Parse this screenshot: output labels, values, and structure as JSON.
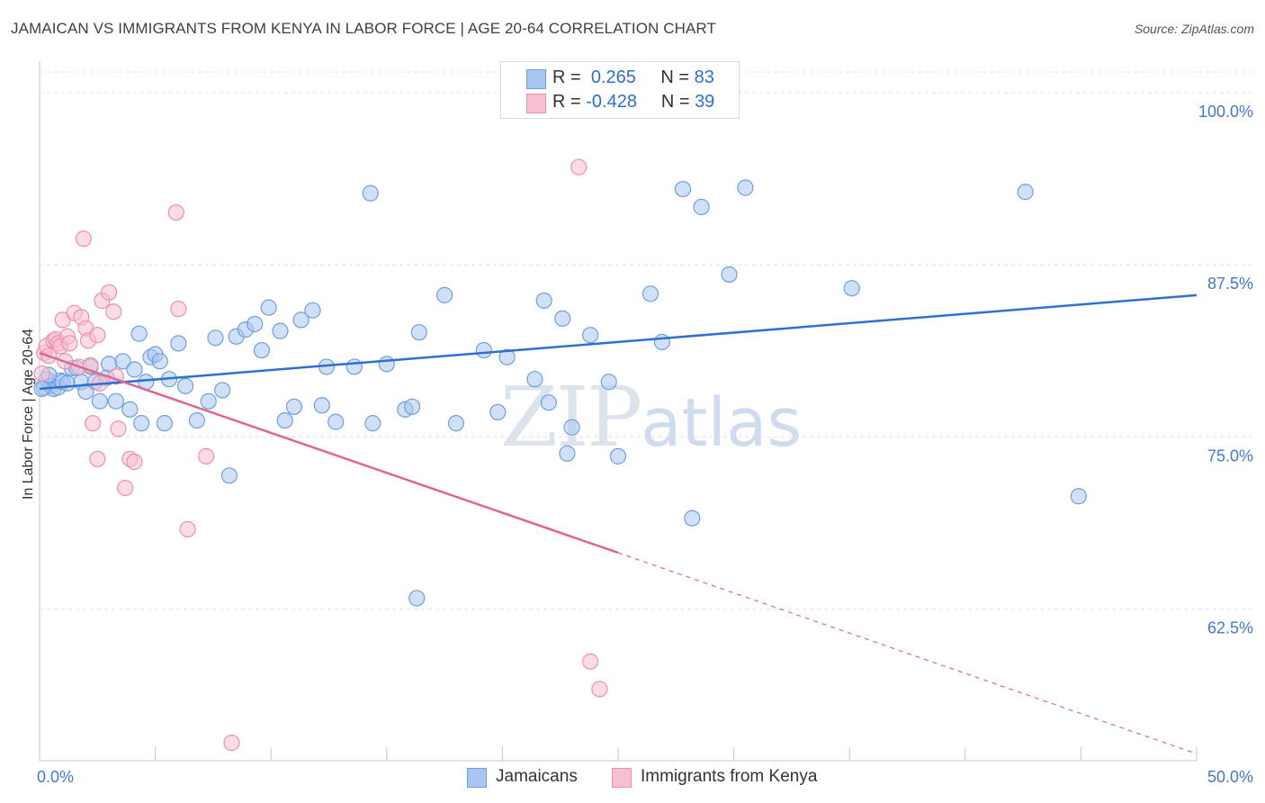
{
  "title": "JAMAICAN VS IMMIGRANTS FROM KENYA IN LABOR FORCE | AGE 20-64 CORRELATION CHART",
  "source": "Source: ZipAtlas.com",
  "watermark": {
    "zip": "ZIP",
    "atlas": "atlas"
  },
  "legend": {
    "r_label": "R =",
    "n_label": "N =",
    "series": [
      {
        "r": "0.265",
        "n": "83"
      },
      {
        "r": "-0.428",
        "n": "39"
      }
    ]
  },
  "bottom_legend": [
    "Jamaicans",
    "Immigrants from Kenya"
  ],
  "colors": {
    "blue_fill": "#a9c6f0",
    "blue_stroke": "#6f9fe0",
    "blue_line": "#2f70cf",
    "pink_fill": "#f8bfd1",
    "pink_stroke": "#ee90ad",
    "pink_line": "#e0668f"
  },
  "chart_data": {
    "type": "scatter",
    "title": "JAMAICAN VS IMMIGRANTS FROM KENYA IN LABOR FORCE | AGE 20-64 CORRELATION CHART",
    "xlabel": "",
    "ylabel": "In Labor Force | Age 20-64",
    "xlim": [
      0,
      50
    ],
    "ylim": [
      51.5,
      101.5
    ],
    "x_tick_labels": [
      "0.0%",
      "50.0%"
    ],
    "y_ticks": [
      62.5,
      75.0,
      87.5,
      100.0
    ],
    "y_tick_labels": [
      "62.5%",
      "75.0%",
      "87.5%",
      "100.0%"
    ],
    "grid": true,
    "series": [
      {
        "name": "Jamaicans",
        "r": 0.265,
        "n": 83,
        "trend": {
          "x": [
            0,
            50
          ],
          "y": [
            78.5,
            85.3
          ]
        },
        "points": [
          [
            0.2,
            78.6
          ],
          [
            0.3,
            79.2
          ],
          [
            0.5,
            78.7
          ],
          [
            0.6,
            78.5
          ],
          [
            0.8,
            78.6
          ],
          [
            0.9,
            79.1
          ],
          [
            1.0,
            79.0
          ],
          [
            1.2,
            78.9
          ],
          [
            1.4,
            80.0
          ],
          [
            1.6,
            80.0
          ],
          [
            1.8,
            79.0
          ],
          [
            2.0,
            78.3
          ],
          [
            2.2,
            80.1
          ],
          [
            2.4,
            79.0
          ],
          [
            2.6,
            77.6
          ],
          [
            2.9,
            79.3
          ],
          [
            3.0,
            80.3
          ],
          [
            3.3,
            77.6
          ],
          [
            3.6,
            80.5
          ],
          [
            3.9,
            77.0
          ],
          [
            4.1,
            79.9
          ],
          [
            4.3,
            82.5
          ],
          [
            4.4,
            76.0
          ],
          [
            4.6,
            79.0
          ],
          [
            4.8,
            80.8
          ],
          [
            5.0,
            81.0
          ],
          [
            5.2,
            80.5
          ],
          [
            5.4,
            76.0
          ],
          [
            5.6,
            79.2
          ],
          [
            6.0,
            81.8
          ],
          [
            6.3,
            78.7
          ],
          [
            6.8,
            76.2
          ],
          [
            7.3,
            77.6
          ],
          [
            7.6,
            82.2
          ],
          [
            7.9,
            78.4
          ],
          [
            8.2,
            72.2
          ],
          [
            8.5,
            82.3
          ],
          [
            8.9,
            82.8
          ],
          [
            9.3,
            83.2
          ],
          [
            9.6,
            81.3
          ],
          [
            9.9,
            84.4
          ],
          [
            10.4,
            82.7
          ],
          [
            10.6,
            76.2
          ],
          [
            11.0,
            77.2
          ],
          [
            11.3,
            83.5
          ],
          [
            11.8,
            84.2
          ],
          [
            12.2,
            77.3
          ],
          [
            12.4,
            80.1
          ],
          [
            12.8,
            76.1
          ],
          [
            13.6,
            80.1
          ],
          [
            14.3,
            92.7
          ],
          [
            14.4,
            76.0
          ],
          [
            15.0,
            80.3
          ],
          [
            15.8,
            77.0
          ],
          [
            16.1,
            77.2
          ],
          [
            16.4,
            82.6
          ],
          [
            17.5,
            85.3
          ],
          [
            18.0,
            76.0
          ],
          [
            19.2,
            81.3
          ],
          [
            19.8,
            76.8
          ],
          [
            20.2,
            80.8
          ],
          [
            21.4,
            79.2
          ],
          [
            21.8,
            84.9
          ],
          [
            22.0,
            77.5
          ],
          [
            22.6,
            83.6
          ],
          [
            22.8,
            73.8
          ],
          [
            23.0,
            75.7
          ],
          [
            23.8,
            82.4
          ],
          [
            24.6,
            79.0
          ],
          [
            25.0,
            73.6
          ],
          [
            26.4,
            85.4
          ],
          [
            26.9,
            81.9
          ],
          [
            27.8,
            93.0
          ],
          [
            28.2,
            69.1
          ],
          [
            28.6,
            91.7
          ],
          [
            29.8,
            86.8
          ],
          [
            30.5,
            93.1
          ],
          [
            35.1,
            85.8
          ],
          [
            42.6,
            92.8
          ],
          [
            44.9,
            70.7
          ],
          [
            16.3,
            63.3
          ],
          [
            0.1,
            78.5
          ],
          [
            0.4,
            79.5
          ]
        ]
      },
      {
        "name": "Immigrants from Kenya",
        "r": -0.428,
        "n": 39,
        "trend": {
          "x": [
            0,
            25
          ],
          "y": [
            81.1,
            66.6
          ]
        },
        "trend_dashed": {
          "x": [
            25,
            50
          ],
          "y": [
            66.6,
            52.0
          ]
        },
        "points": [
          [
            0.1,
            79.6
          ],
          [
            0.2,
            81.1
          ],
          [
            0.3,
            81.6
          ],
          [
            0.4,
            80.9
          ],
          [
            0.6,
            82.0
          ],
          [
            0.7,
            82.1
          ],
          [
            0.8,
            81.8
          ],
          [
            0.9,
            81.6
          ],
          [
            1.0,
            83.5
          ],
          [
            1.1,
            80.5
          ],
          [
            1.2,
            82.3
          ],
          [
            1.3,
            81.8
          ],
          [
            1.5,
            84.0
          ],
          [
            1.7,
            80.1
          ],
          [
            1.8,
            83.7
          ],
          [
            2.0,
            82.9
          ],
          [
            2.1,
            82.0
          ],
          [
            2.2,
            80.2
          ],
          [
            2.5,
            82.4
          ],
          [
            2.6,
            78.9
          ],
          [
            2.7,
            84.9
          ],
          [
            3.0,
            85.5
          ],
          [
            3.2,
            84.1
          ],
          [
            3.3,
            79.4
          ],
          [
            1.9,
            89.4
          ],
          [
            3.4,
            75.6
          ],
          [
            3.7,
            71.3
          ],
          [
            3.9,
            73.4
          ],
          [
            4.1,
            73.2
          ],
          [
            2.3,
            76.0
          ],
          [
            2.5,
            73.4
          ],
          [
            5.9,
            91.3
          ],
          [
            6.0,
            84.3
          ],
          [
            6.4,
            68.3
          ],
          [
            7.2,
            73.6
          ],
          [
            8.3,
            52.8
          ],
          [
            23.3,
            94.6
          ],
          [
            23.8,
            58.7
          ],
          [
            24.2,
            56.7
          ]
        ]
      }
    ]
  }
}
